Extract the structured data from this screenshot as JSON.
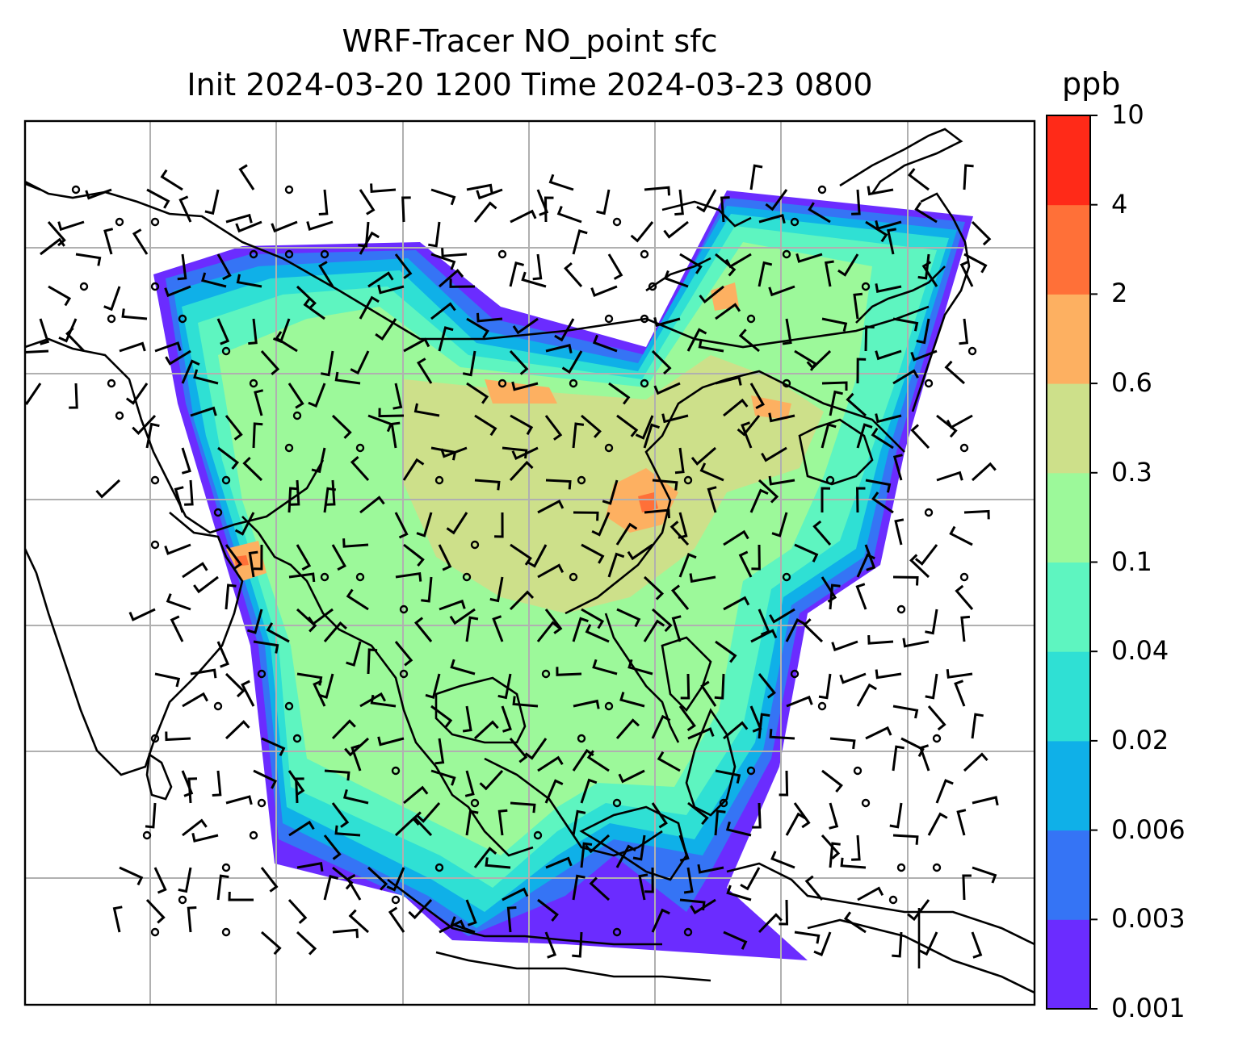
{
  "chart_data": {
    "type": "heatmap",
    "title": "WRF-Tracer NO_point sfc",
    "subtitle": "Init 2024-03-20 1200 Time 2024-03-23 0800",
    "colorbar": {
      "unit": "ppb",
      "levels": [
        "0.001",
        "0.003",
        "0.006",
        "0.02",
        "0.04",
        "0.1",
        "0.3",
        "0.6",
        "2",
        "4",
        "10"
      ],
      "colors": [
        "#6b2cff",
        "#3574f5",
        "#0fb0e8",
        "#2fe0d4",
        "#5ef5c0",
        "#9cf99a",
        "#cde08a",
        "#fdb061",
        "#ff7038",
        "#ff2a18"
      ]
    },
    "map": {
      "gridlines": true,
      "coastlines": true,
      "background": "#ffffff",
      "wind_barbs": true
    }
  }
}
